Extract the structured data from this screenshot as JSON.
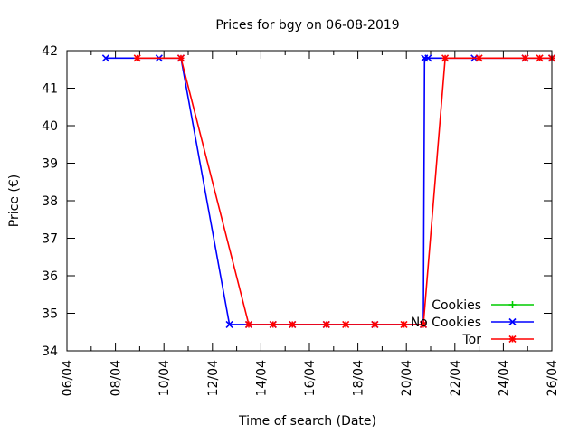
{
  "chart_data": {
    "type": "line",
    "title": "Prices for bgy on 06-08-2019",
    "xlabel": "Time of search (Date)",
    "ylabel": "Price (€)",
    "x_range": [
      0,
      20
    ],
    "ylim": [
      34,
      42
    ],
    "x_ticks": [
      "06/04",
      "08/04",
      "10/04",
      "12/04",
      "14/04",
      "16/04",
      "18/04",
      "20/04",
      "22/04",
      "24/04",
      "26/04"
    ],
    "y_ticks": [
      34,
      35,
      36,
      37,
      38,
      39,
      40,
      41,
      42
    ],
    "grid": false,
    "legend_position": "bottom-right",
    "series": [
      {
        "name": "Cookies",
        "color": "#00cc00",
        "points": []
      },
      {
        "name": "No Cookies",
        "color": "#0000ff",
        "points": [
          [
            1.6,
            41.8
          ],
          [
            3.8,
            41.8
          ],
          [
            4.7,
            41.8
          ],
          [
            6.7,
            34.7
          ],
          [
            7.5,
            34.7
          ],
          [
            8.5,
            34.7
          ],
          [
            9.3,
            34.7
          ],
          [
            10.7,
            34.7
          ],
          [
            12.7,
            34.7
          ],
          [
            14.7,
            34.7
          ],
          [
            14.75,
            41.8
          ],
          [
            14.9,
            41.8
          ],
          [
            16.8,
            41.8
          ],
          [
            18.9,
            41.8
          ],
          [
            20,
            41.8
          ]
        ]
      },
      {
        "name": "Tor",
        "color": "#ff0000",
        "points": [
          [
            2.9,
            41.8
          ],
          [
            4.7,
            41.8
          ],
          [
            7.5,
            34.7
          ],
          [
            8.5,
            34.7
          ],
          [
            9.3,
            34.7
          ],
          [
            10.7,
            34.7
          ],
          [
            11.5,
            34.7
          ],
          [
            12.7,
            34.7
          ],
          [
            13.9,
            34.7
          ],
          [
            14.7,
            34.7
          ],
          [
            15.6,
            41.8
          ],
          [
            17.0,
            41.8
          ],
          [
            18.9,
            41.8
          ],
          [
            19.5,
            41.8
          ],
          [
            20,
            41.8
          ]
        ]
      }
    ]
  }
}
